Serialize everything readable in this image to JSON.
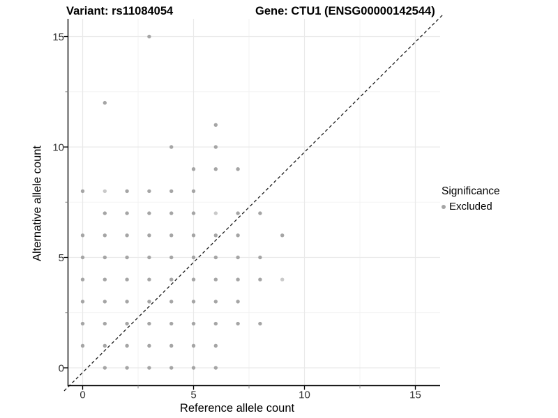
{
  "header": {
    "variant_title": "Variant: rs11084054",
    "gene_title": "Gene: CTU1 (ENSG00000142544)"
  },
  "axes": {
    "x": {
      "label": "Reference allele count",
      "major_ticks": [
        0,
        5,
        10,
        15
      ],
      "minor_ticks": [
        2.5,
        7.5,
        12.5
      ],
      "range": [
        -0.65,
        16.1
      ]
    },
    "y": {
      "label": "Alternative allele count",
      "major_ticks": [
        0,
        5,
        10,
        15
      ],
      "minor_ticks": [
        2.5,
        7.5,
        12.5
      ],
      "range": [
        -0.8,
        15.8
      ]
    }
  },
  "legend": {
    "title": "Significance",
    "items": [
      {
        "label": "Excluded",
        "color": "#a5a5a5"
      }
    ]
  },
  "chart_data": {
    "type": "scatter",
    "xlabel": "Reference allele count",
    "ylabel": "Alternative allele count",
    "xlim": [
      -0.65,
      16.1
    ],
    "ylim": [
      -0.8,
      15.8
    ],
    "grid": "on",
    "legend_position": "right",
    "series": [
      {
        "name": "Excluded",
        "color": "#a5a5a5",
        "points": [
          [
            0,
            1
          ],
          [
            0,
            2
          ],
          [
            0,
            3
          ],
          [
            0,
            4
          ],
          [
            0,
            5
          ],
          [
            0,
            6
          ],
          [
            0,
            8
          ],
          [
            1,
            0
          ],
          [
            1,
            1
          ],
          [
            1,
            2
          ],
          [
            1,
            3
          ],
          [
            1,
            4
          ],
          [
            1,
            5
          ],
          [
            1,
            6
          ],
          [
            1,
            7
          ],
          [
            1,
            8
          ],
          [
            1,
            12
          ],
          [
            2,
            0
          ],
          [
            2,
            1
          ],
          [
            2,
            2
          ],
          [
            2,
            3
          ],
          [
            2,
            4
          ],
          [
            2,
            5
          ],
          [
            2,
            6
          ],
          [
            2,
            7
          ],
          [
            2,
            8
          ],
          [
            3,
            0
          ],
          [
            3,
            1
          ],
          [
            3,
            2
          ],
          [
            3,
            3
          ],
          [
            3,
            4
          ],
          [
            3,
            5
          ],
          [
            3,
            6
          ],
          [
            3,
            7
          ],
          [
            3,
            8
          ],
          [
            3,
            15
          ],
          [
            4,
            0
          ],
          [
            4,
            1
          ],
          [
            4,
            2
          ],
          [
            4,
            3
          ],
          [
            4,
            4
          ],
          [
            4,
            5
          ],
          [
            4,
            6
          ],
          [
            4,
            7
          ],
          [
            4,
            8
          ],
          [
            4,
            10
          ],
          [
            5,
            0
          ],
          [
            5,
            1
          ],
          [
            5,
            2
          ],
          [
            5,
            3
          ],
          [
            5,
            4
          ],
          [
            5,
            5
          ],
          [
            5,
            6
          ],
          [
            5,
            7
          ],
          [
            5,
            8
          ],
          [
            5,
            9
          ],
          [
            6,
            0
          ],
          [
            6,
            1
          ],
          [
            6,
            2
          ],
          [
            6,
            3
          ],
          [
            6,
            4
          ],
          [
            6,
            5
          ],
          [
            6,
            6
          ],
          [
            6,
            7
          ],
          [
            6,
            9
          ],
          [
            6,
            10
          ],
          [
            6,
            11
          ],
          [
            7,
            2
          ],
          [
            7,
            3
          ],
          [
            7,
            4
          ],
          [
            7,
            5
          ],
          [
            7,
            6
          ],
          [
            7,
            7
          ],
          [
            7,
            9
          ],
          [
            8,
            2
          ],
          [
            8,
            4
          ],
          [
            8,
            5
          ],
          [
            8,
            7
          ],
          [
            9,
            4
          ],
          [
            9,
            6
          ]
        ],
        "light_points": [
          [
            1,
            8
          ],
          [
            6,
            7
          ],
          [
            9,
            4
          ]
        ]
      }
    ],
    "identity_line": {
      "type": "abline",
      "slope": 1,
      "intercept": 0,
      "style": "dashed",
      "color": "#1a1a1a"
    }
  },
  "colors": {
    "background": "#ffffff",
    "grid_major": "#e9e9e9",
    "grid_minor": "#f3f3f3",
    "axis_line": "#000000",
    "tick_label": "#333333",
    "point": "#a5a5a5",
    "point_light": "#c9c9c9",
    "minor_tick": "#8a8a8a"
  }
}
